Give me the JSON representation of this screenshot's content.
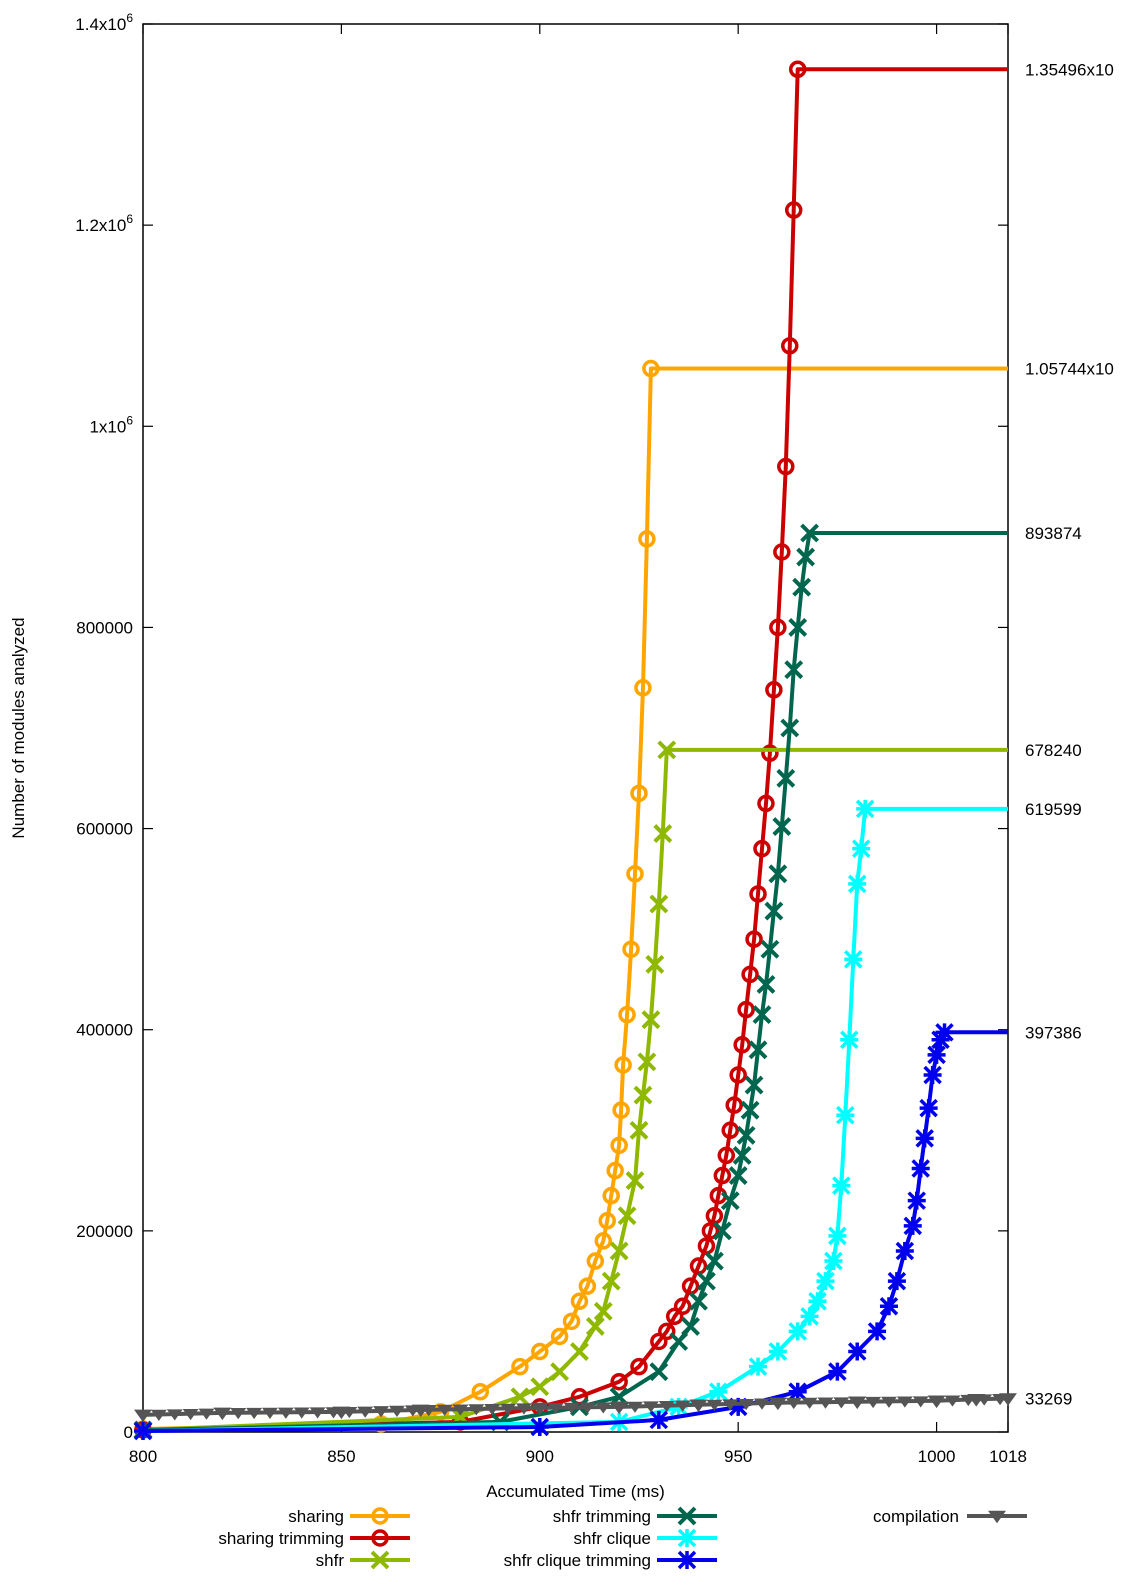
{
  "chart_data": {
    "type": "line",
    "title": "",
    "xlabel": "Accumulated Time (ms)",
    "ylabel": "Number of modules analyzed",
    "xlim": [
      800,
      1018
    ],
    "ylim": [
      0,
      1400000
    ],
    "x_ticks": [
      {
        "value": 800,
        "label": "800"
      },
      {
        "value": 850,
        "label": "850"
      },
      {
        "value": 900,
        "label": "900"
      },
      {
        "value": 950,
        "label": "950"
      },
      {
        "value": 1000,
        "label": "1000"
      },
      {
        "value": 1018,
        "label": "1018"
      }
    ],
    "y_ticks": [
      {
        "value": 0,
        "label": "0"
      },
      {
        "value": 200000,
        "label": "200000"
      },
      {
        "value": 400000,
        "label": "400000"
      },
      {
        "value": 600000,
        "label": "600000"
      },
      {
        "value": 800000,
        "label": "800000"
      },
      {
        "value": 1000000,
        "label": "1x10",
        "exp": "6"
      },
      {
        "value": 1200000,
        "label": "1.2x10",
        "exp": "6"
      },
      {
        "value": 1400000,
        "label": "1.4x10",
        "exp": "6"
      }
    ],
    "right_labels": [
      {
        "value": 1354960,
        "label": "1.35496x10"
      },
      {
        "value": 1057440,
        "label": "1.05744x10"
      },
      {
        "value": 893874,
        "label": "893874"
      },
      {
        "value": 678240,
        "label": "678240"
      },
      {
        "value": 619599,
        "label": "619599"
      },
      {
        "value": 397386,
        "label": "397386"
      },
      {
        "value": 33269,
        "label": "33269"
      }
    ],
    "grid": false,
    "legend_position": "bottom",
    "series": [
      {
        "name": "sharing",
        "color": "#ffa500",
        "marker": "circle",
        "x": [
          800,
          860,
          875,
          885,
          895,
          900,
          905,
          908,
          910,
          912,
          914,
          916,
          917,
          918,
          919,
          920,
          920.5,
          921,
          922,
          923,
          924,
          925,
          926,
          927,
          928,
          1018
        ],
        "y": [
          3000,
          8000,
          20000,
          40000,
          65000,
          80000,
          95000,
          110000,
          130000,
          145000,
          170000,
          190000,
          210000,
          235000,
          260000,
          285000,
          320000,
          365000,
          415000,
          480000,
          555000,
          635000,
          740000,
          888000,
          1057440,
          1057440
        ]
      },
      {
        "name": "sharing trimming",
        "color": "#cc0000",
        "marker": "circle",
        "x": [
          800,
          880,
          900,
          910,
          920,
          925,
          930,
          932,
          934,
          936,
          938,
          940,
          942,
          943,
          944,
          945,
          946,
          947,
          948,
          949,
          950,
          951,
          952,
          953,
          954,
          955,
          956,
          957,
          958,
          959,
          960,
          961,
          962,
          963,
          964,
          965,
          1018
        ],
        "y": [
          2000,
          10000,
          25000,
          35000,
          50000,
          65000,
          90000,
          100000,
          115000,
          125000,
          145000,
          165000,
          185000,
          200000,
          215000,
          235000,
          255000,
          275000,
          300000,
          325000,
          355000,
          385000,
          420000,
          455000,
          490000,
          535000,
          580000,
          625000,
          675000,
          738000,
          800000,
          875000,
          960000,
          1080000,
          1215000,
          1354960,
          1354960
        ]
      },
      {
        "name": "shfr",
        "color": "#8fb800",
        "marker": "x",
        "x": [
          800,
          880,
          895,
          900,
          905,
          910,
          914,
          916,
          918,
          920,
          922,
          924,
          925,
          926,
          927,
          928,
          929,
          930,
          931,
          932,
          1018
        ],
        "y": [
          2000,
          15000,
          35000,
          45000,
          60000,
          80000,
          105000,
          120000,
          150000,
          180000,
          215000,
          250000,
          300000,
          335000,
          368000,
          410000,
          465000,
          525000,
          595000,
          678240,
          678240
        ]
      },
      {
        "name": "shfr trimming",
        "color": "#00664d",
        "marker": "x",
        "x": [
          800,
          890,
          910,
          920,
          930,
          935,
          938,
          940,
          942,
          944,
          946,
          948,
          950,
          951,
          952,
          953,
          954,
          955,
          956,
          957,
          958,
          959,
          960,
          961,
          962,
          963,
          964,
          965,
          966,
          967,
          968,
          1018
        ],
        "y": [
          2000,
          10000,
          25000,
          35000,
          60000,
          90000,
          105000,
          130000,
          150000,
          170000,
          200000,
          230000,
          255000,
          275000,
          295000,
          320000,
          345000,
          380000,
          415000,
          445000,
          480000,
          518000,
          555000,
          602000,
          650000,
          700000,
          758000,
          800000,
          840000,
          870000,
          893874,
          893874
        ]
      },
      {
        "name": "shfr clique",
        "color": "#00ffff",
        "marker": "star",
        "x": [
          800,
          920,
          935,
          945,
          955,
          960,
          965,
          968,
          970,
          972,
          974,
          975,
          976,
          977,
          978,
          979,
          980,
          981,
          982,
          1018
        ],
        "y": [
          1000,
          10000,
          25000,
          40000,
          65000,
          80000,
          100000,
          115000,
          130000,
          150000,
          170000,
          195000,
          245000,
          315000,
          390000,
          470000,
          545000,
          580000,
          619599,
          619599
        ]
      },
      {
        "name": "shfr clique trimming",
        "color": "#0000ee",
        "marker": "star",
        "x": [
          800,
          900,
          930,
          950,
          965,
          975,
          980,
          985,
          988,
          990,
          992,
          994,
          995,
          996,
          997,
          998,
          999,
          1000,
          1001,
          1002,
          1018
        ],
        "y": [
          1000,
          5000,
          12000,
          25000,
          40000,
          60000,
          80000,
          100000,
          125000,
          150000,
          180000,
          205000,
          230000,
          262000,
          292000,
          322000,
          355000,
          375000,
          390000,
          397386,
          397386
        ]
      },
      {
        "name": "compilation",
        "color": "#555555",
        "marker": "triangle-down",
        "x": [
          800,
          820,
          850,
          870,
          900,
          920,
          940,
          960,
          980,
          1000,
          1010,
          1018
        ],
        "y": [
          17000,
          19000,
          20000,
          22000,
          24000,
          25000,
          27000,
          29000,
          30000,
          31000,
          32500,
          33269
        ]
      }
    ]
  }
}
